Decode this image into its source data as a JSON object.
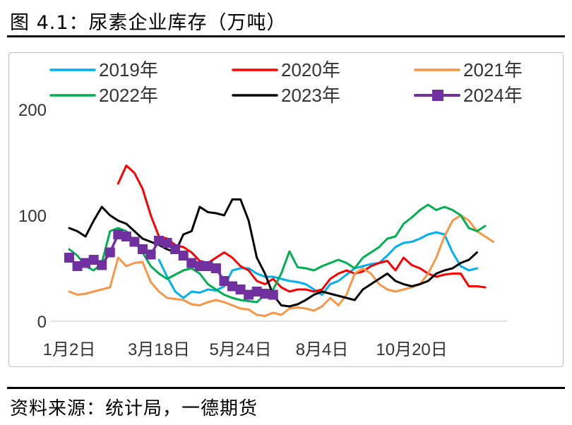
{
  "figure": {
    "title": "图 4.1：尿素企业库存（万吨）",
    "source": "资料来源：统计局，一德期货"
  },
  "colors": {
    "2019": "#00b0f0",
    "2020": "#ff0000",
    "2021": "#f79646",
    "2022": "#00b050",
    "2023": "#000000",
    "2024": "#7030a0",
    "axis": "#d9d9d9",
    "text": "#333333"
  },
  "chart_data": {
    "type": "line",
    "title": "尿素企业库存（万吨）",
    "xlabel": "",
    "ylabel": "",
    "ylim": [
      0,
      200
    ],
    "yticks": [
      0,
      100,
      200
    ],
    "grid": false,
    "legend_position": "top",
    "x_tick_labels": [
      {
        "label": "1月2日",
        "week": 1
      },
      {
        "label": "3月18日",
        "week": 12
      },
      {
        "label": "5月24日",
        "week": 22
      },
      {
        "label": "8月4日",
        "week": 32
      },
      {
        "label": "10月20日",
        "week": 43
      }
    ],
    "series": [
      {
        "name": "2019年",
        "key": "2019",
        "markers": false,
        "values": [
          null,
          null,
          null,
          null,
          null,
          null,
          null,
          null,
          null,
          null,
          null,
          58,
          42,
          28,
          22,
          28,
          27,
          30,
          29,
          33,
          48,
          50,
          50,
          45,
          42,
          42,
          40,
          38,
          37,
          35,
          30,
          25,
          35,
          38,
          44,
          50,
          52,
          54,
          55,
          62,
          70,
          74,
          75,
          78,
          82,
          84,
          82,
          65,
          52,
          48,
          50
        ]
      },
      {
        "name": "2020年",
        "key": "2020",
        "markers": false,
        "values": [
          null,
          null,
          null,
          null,
          null,
          null,
          130,
          147,
          140,
          125,
          100,
          80,
          78,
          72,
          70,
          65,
          57,
          55,
          60,
          65,
          60,
          52,
          48,
          38,
          35,
          40,
          32,
          28,
          30,
          30,
          28,
          30,
          40,
          45,
          48,
          45,
          47,
          52,
          55,
          57,
          48,
          60,
          53,
          50,
          45,
          42,
          44,
          45,
          45,
          33,
          33,
          32
        ]
      },
      {
        "name": "2021年",
        "key": "2021",
        "markers": false,
        "values": [
          28,
          25,
          26,
          28,
          30,
          32,
          60,
          52,
          55,
          56,
          37,
          28,
          22,
          21,
          20,
          16,
          15,
          18,
          20,
          18,
          15,
          12,
          11,
          6,
          5,
          8,
          6,
          12,
          13,
          12,
          10,
          14,
          22,
          15,
          25,
          45,
          50,
          45,
          35,
          30,
          28,
          30,
          32,
          35,
          45,
          60,
          80,
          95,
          100,
          95,
          85,
          80,
          75
        ]
      },
      {
        "name": "2022年",
        "key": "2022",
        "markers": false,
        "values": [
          68,
          62,
          52,
          48,
          55,
          85,
          88,
          85,
          75,
          65,
          52,
          45,
          40,
          44,
          48,
          50,
          45,
          35,
          30,
          25,
          22,
          20,
          19,
          18,
          25,
          30,
          45,
          66,
          51,
          50,
          48,
          52,
          55,
          58,
          55,
          50,
          60,
          65,
          70,
          78,
          80,
          92,
          98,
          105,
          110,
          105,
          108,
          105,
          100,
          88,
          85,
          90
        ]
      },
      {
        "name": "2023年",
        "key": "2023",
        "markers": false,
        "values": [
          88,
          85,
          80,
          95,
          108,
          100,
          95,
          92,
          85,
          78,
          75,
          72,
          68,
          65,
          82,
          85,
          108,
          103,
          102,
          100,
          115,
          115,
          95,
          60,
          45,
          25,
          15,
          14,
          16,
          20,
          25,
          28,
          26,
          24,
          22,
          20,
          30,
          35,
          40,
          45,
          38,
          35,
          33,
          35,
          38,
          45,
          48,
          50,
          55,
          58,
          65
        ]
      },
      {
        "name": "2024年",
        "key": "2024",
        "markers": true,
        "values": [
          60,
          52,
          55,
          58,
          53,
          65,
          82,
          80,
          75,
          68,
          63,
          76,
          74,
          68,
          62,
          55,
          52,
          52,
          50,
          38,
          33,
          30,
          25,
          28,
          26,
          25
        ]
      }
    ]
  },
  "legend": {
    "rows": [
      [
        "2019",
        "2020",
        "2021"
      ],
      [
        "2022",
        "2023",
        "2024"
      ]
    ]
  }
}
